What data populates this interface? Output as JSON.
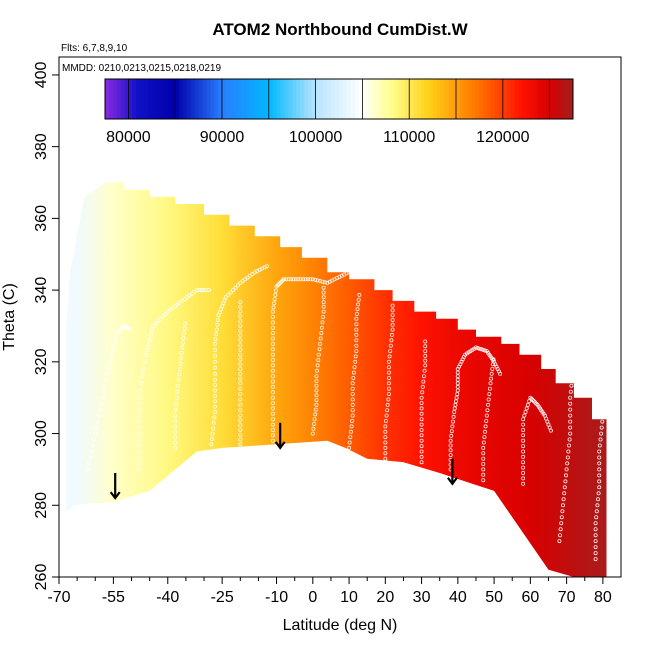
{
  "chart_data": {
    "type": "heatmap",
    "title": "ATOM2 Northbound CumDist.W",
    "xlabel": "Latitude (deg N)",
    "ylabel": "Theta (C)",
    "flights_note": "Flts: 6,7,8,9,10",
    "mmdd_note": "MMDD: 0210,0213,0215,0218,0219",
    "xlim": [
      -70,
      85
    ],
    "ylim": [
      260,
      405
    ],
    "x_tick_labels": [
      "-70",
      "-55",
      "-40",
      "-25",
      "-10",
      "0",
      "10",
      "20",
      "30",
      "40",
      "50",
      "60",
      "70",
      "80"
    ],
    "x_tick_values": [
      -70,
      -55,
      -40,
      -25,
      -10,
      0,
      10,
      20,
      30,
      40,
      50,
      60,
      70,
      80
    ],
    "x_minor_ticks": [
      -65,
      -60,
      -50,
      -45,
      -35,
      -30,
      -20,
      -15,
      -5,
      5,
      15,
      25,
      35,
      45,
      55,
      65,
      75
    ],
    "y_tick_labels": [
      "260",
      "280",
      "300",
      "320",
      "340",
      "360",
      "380",
      "400"
    ],
    "y_tick_values": [
      260,
      280,
      300,
      320,
      340,
      360,
      380,
      400
    ],
    "colorbar": {
      "range": [
        77500,
        127500
      ],
      "tick_labels": [
        "80000",
        "90000",
        "100000",
        "110000",
        "120000"
      ],
      "tick_values": [
        80000,
        90000,
        100000,
        110000,
        120000
      ],
      "segment_breaks": [
        77500,
        85000,
        95000,
        105000,
        115000,
        125000,
        127500
      ],
      "divider_values": [
        80000,
        85000,
        90000,
        95000,
        100000,
        105000,
        110000,
        115000,
        120000,
        125000
      ],
      "color_stops": [
        {
          "v": 77500,
          "c": "#8a2be2"
        },
        {
          "v": 81000,
          "c": "#1010c8"
        },
        {
          "v": 85000,
          "c": "#0000aa"
        },
        {
          "v": 90000,
          "c": "#2a7dff"
        },
        {
          "v": 95000,
          "c": "#00b8ff"
        },
        {
          "v": 100000,
          "c": "#b8e4ff"
        },
        {
          "v": 105000,
          "c": "#ffffff"
        },
        {
          "v": 108000,
          "c": "#ffff90"
        },
        {
          "v": 112000,
          "c": "#ffd21a"
        },
        {
          "v": 117000,
          "c": "#ff7a00"
        },
        {
          "v": 122000,
          "c": "#ff1200"
        },
        {
          "v": 125000,
          "c": "#d80000"
        },
        {
          "v": 127500,
          "c": "#a02020"
        }
      ]
    },
    "field": {
      "description": "cumulative distance W as a function of latitude",
      "lat_value_pairs": [
        [
          -65,
          104000
        ],
        [
          -55,
          106500
        ],
        [
          -40,
          108500
        ],
        [
          -25,
          111000
        ],
        [
          -10,
          114500
        ],
        [
          0,
          116500
        ],
        [
          10,
          118500
        ],
        [
          20,
          120500
        ],
        [
          30,
          122000
        ],
        [
          40,
          123500
        ],
        [
          60,
          125000
        ],
        [
          80,
          127000
        ]
      ]
    },
    "domain_top": [
      [
        -66,
        350
      ],
      [
        -63,
        366
      ],
      [
        -57,
        370
      ],
      [
        -52,
        370
      ],
      [
        -52,
        368
      ],
      [
        -45,
        368
      ],
      [
        -45,
        366
      ],
      [
        -38,
        366
      ],
      [
        -38,
        364
      ],
      [
        -30,
        364
      ],
      [
        -30,
        361
      ],
      [
        -23,
        361
      ],
      [
        -23,
        358
      ],
      [
        -16,
        358
      ],
      [
        -16,
        355
      ],
      [
        -9,
        355
      ],
      [
        -9,
        352
      ],
      [
        -3,
        352
      ],
      [
        -3,
        349
      ],
      [
        4,
        349
      ],
      [
        4,
        345
      ],
      [
        10,
        345
      ],
      [
        10,
        343
      ],
      [
        17,
        343
      ],
      [
        17,
        340
      ],
      [
        22,
        340
      ],
      [
        22,
        337
      ],
      [
        28,
        337
      ],
      [
        28,
        334
      ],
      [
        34,
        334
      ],
      [
        34,
        332
      ],
      [
        40,
        332
      ],
      [
        40,
        329
      ],
      [
        45,
        329
      ],
      [
        45,
        327
      ],
      [
        52,
        327
      ],
      [
        52,
        325
      ],
      [
        57,
        325
      ],
      [
        57,
        322
      ],
      [
        63,
        322
      ],
      [
        63,
        318
      ],
      [
        67,
        318
      ],
      [
        67,
        314
      ],
      [
        72,
        314
      ],
      [
        72,
        310
      ],
      [
        77,
        310
      ],
      [
        77,
        304
      ],
      [
        81,
        304
      ],
      [
        81,
        294
      ],
      [
        81,
        260
      ]
    ],
    "domain_bottom": [
      [
        81,
        260
      ],
      [
        72,
        260
      ],
      [
        65,
        262
      ],
      [
        50,
        284
      ],
      [
        44,
        286
      ],
      [
        35,
        289
      ],
      [
        25,
        292
      ],
      [
        15,
        293
      ],
      [
        9,
        296
      ],
      [
        4,
        298
      ],
      [
        -10,
        297
      ],
      [
        -25,
        296
      ],
      [
        -32,
        295
      ],
      [
        -45,
        284
      ],
      [
        -55,
        281
      ],
      [
        -66,
        280
      ],
      [
        -68,
        278
      ],
      [
        -68,
        290
      ],
      [
        -68,
        330
      ],
      [
        -67,
        345
      ],
      [
        -66,
        350
      ]
    ],
    "flight_tracks": [
      [
        [
          -62,
          290
        ],
        [
          -60,
          300
        ],
        [
          -58,
          310
        ],
        [
          -56,
          320
        ],
        [
          -54,
          328
        ],
        [
          -52,
          330
        ],
        [
          -50,
          329
        ]
      ],
      [
        [
          -48,
          290
        ],
        [
          -48,
          300
        ],
        [
          -48,
          310
        ],
        [
          -46,
          322
        ],
        [
          -44,
          330
        ],
        [
          -40,
          334
        ],
        [
          -36,
          337
        ],
        [
          -32,
          340
        ],
        [
          -28,
          340
        ]
      ],
      [
        [
          -38,
          296
        ],
        [
          -38,
          305
        ],
        [
          -37,
          315
        ],
        [
          -36,
          324
        ],
        [
          -35,
          332
        ]
      ],
      [
        [
          -28,
          297
        ],
        [
          -27,
          306
        ],
        [
          -27,
          315
        ],
        [
          -27,
          325
        ],
        [
          -26,
          333
        ],
        [
          -24,
          338
        ],
        [
          -20,
          342
        ],
        [
          -16,
          345
        ],
        [
          -12,
          347
        ]
      ],
      [
        [
          -20,
          297
        ],
        [
          -20,
          305
        ],
        [
          -20,
          314
        ],
        [
          -20,
          322
        ],
        [
          -20,
          330
        ],
        [
          -20,
          338
        ]
      ],
      [
        [
          -11,
          298
        ],
        [
          -11,
          307
        ],
        [
          -11,
          316
        ],
        [
          -11,
          325
        ],
        [
          -11,
          334
        ],
        [
          -10,
          341
        ],
        [
          -8,
          343
        ],
        [
          -4,
          343
        ],
        [
          0,
          343
        ],
        [
          4,
          342
        ],
        [
          8,
          344
        ],
        [
          12,
          346
        ],
        [
          16,
          346
        ]
      ],
      [
        [
          0,
          300
        ],
        [
          1,
          308
        ],
        [
          1,
          316
        ],
        [
          2,
          325
        ],
        [
          3,
          334
        ],
        [
          3,
          342
        ]
      ],
      [
        [
          10,
          296
        ],
        [
          11,
          305
        ],
        [
          11,
          314
        ],
        [
          12,
          323
        ],
        [
          12,
          332
        ],
        [
          13,
          340
        ]
      ],
      [
        [
          20,
          293
        ],
        [
          20,
          302
        ],
        [
          21,
          311
        ],
        [
          21,
          320
        ],
        [
          22,
          329
        ],
        [
          22,
          337
        ]
      ],
      [
        [
          30,
          292
        ],
        [
          30,
          301
        ],
        [
          30,
          310
        ],
        [
          31,
          319
        ],
        [
          31,
          327
        ]
      ],
      [
        [
          38,
          290
        ],
        [
          38,
          298
        ],
        [
          39,
          306
        ],
        [
          40,
          312
        ],
        [
          40,
          318
        ],
        [
          42,
          322
        ],
        [
          45,
          324
        ],
        [
          48,
          323
        ],
        [
          50,
          320
        ],
        [
          52,
          316
        ]
      ],
      [
        [
          47,
          287
        ],
        [
          47,
          296
        ],
        [
          48,
          305
        ],
        [
          49,
          314
        ],
        [
          50,
          322
        ]
      ],
      [
        [
          58,
          286
        ],
        [
          58,
          295
        ],
        [
          58,
          304
        ],
        [
          60,
          310
        ],
        [
          62,
          308
        ],
        [
          64,
          305
        ],
        [
          66,
          300
        ]
      ],
      [
        [
          68,
          270
        ],
        [
          69,
          280
        ],
        [
          70,
          290
        ],
        [
          71,
          300
        ],
        [
          71,
          310
        ],
        [
          72,
          320
        ]
      ],
      [
        [
          78,
          265
        ],
        [
          78,
          275
        ],
        [
          79,
          285
        ],
        [
          79,
          295
        ],
        [
          80,
          305
        ],
        [
          80,
          315
        ],
        [
          80,
          322
        ]
      ]
    ],
    "arrows": [
      {
        "lat": -54.5,
        "theta_top": 289,
        "theta_tip": 282
      },
      {
        "lat": -9,
        "theta_top": 303,
        "theta_tip": 296
      },
      {
        "lat": 38.5,
        "theta_top": 293,
        "theta_tip": 286
      }
    ]
  }
}
